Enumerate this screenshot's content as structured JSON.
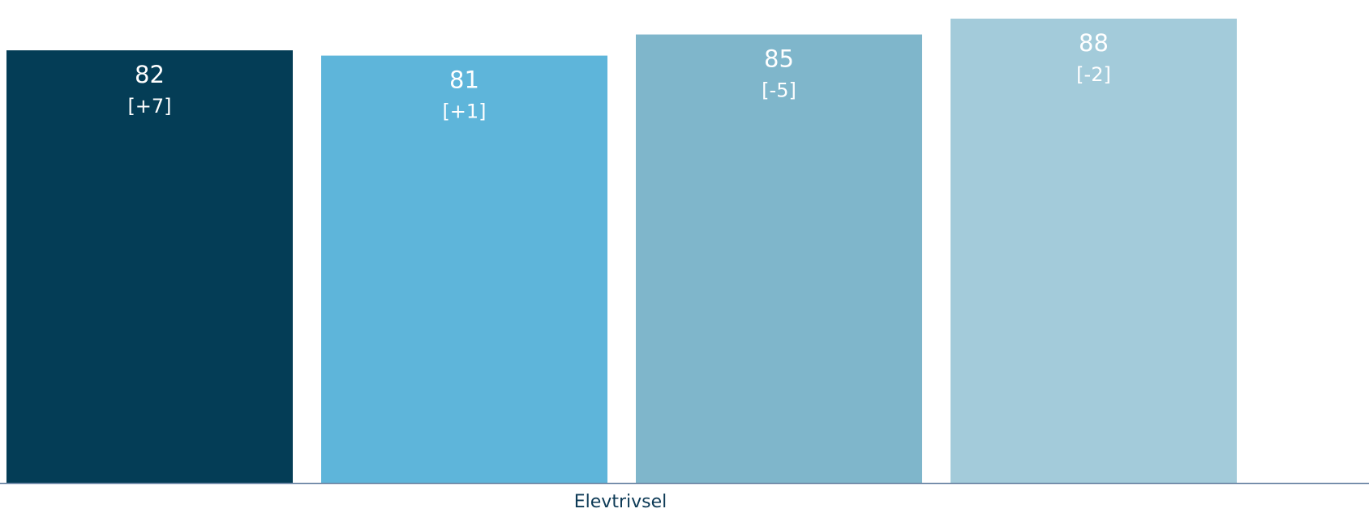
{
  "chart_data": {
    "type": "bar",
    "categories": [
      "Elevtrivsel"
    ],
    "series": [
      {
        "values": [
          82
        ],
        "change_label": "[+7]",
        "color": "#043d56",
        "label_color": "#ffffff"
      },
      {
        "values": [
          81
        ],
        "change_label": "[+1]",
        "color": "#5eb5da",
        "label_color": "#ffffff"
      },
      {
        "values": [
          85
        ],
        "change_label": "[-5]",
        "color": "#7fb6cb",
        "label_color": "#ffffff"
      },
      {
        "values": [
          88
        ],
        "change_label": "[-2]",
        "color": "#a3cbda",
        "label_color": "#ffffff"
      }
    ],
    "ylim": [
      0,
      90
    ],
    "axis_color": "#6a85a4",
    "label_color": "#0d3a56",
    "grid": false,
    "legend": "none"
  }
}
